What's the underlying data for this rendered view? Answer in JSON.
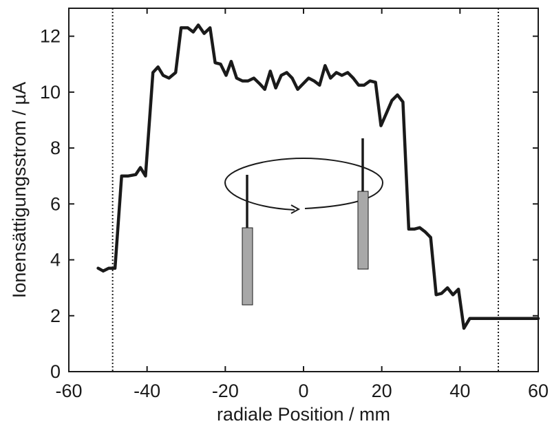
{
  "chart_data": {
    "type": "line",
    "xlabel": "radiale Position  / mm",
    "ylabel": "Ionensättigungsstrom  / µA",
    "xlim": [
      -60,
      60
    ],
    "ylim": [
      0,
      13
    ],
    "x_ticks": [
      -60,
      -40,
      -20,
      0,
      20,
      40,
      60
    ],
    "y_ticks": [
      0,
      2,
      4,
      6,
      8,
      10,
      12
    ],
    "x_tick_labels": [
      "-60",
      "-40",
      "-20",
      "0",
      "20",
      "40",
      "60"
    ],
    "y_tick_labels": [
      "0",
      "2",
      "4",
      "6",
      "8",
      "10",
      "12"
    ],
    "grid": false,
    "vertical_reference_lines": [
      -48.8,
      49.8
    ],
    "series": [
      {
        "x": [
          -52.5,
          -51.2,
          -49.8,
          -48.2,
          -46.5,
          -44.8,
          -42.9,
          -41.7,
          -40.4,
          -38.5,
          -37.2,
          -35.9,
          -34.4,
          -32.7,
          -31.3,
          -29.6,
          -28.2,
          -26.9,
          -25.4,
          -23.9,
          -22.6,
          -21.2,
          -19.8,
          -18.5,
          -17.1,
          -15.6,
          -14.2,
          -12.7,
          -11.2,
          -9.9,
          -8.5,
          -7.1,
          -5.7,
          -4.3,
          -2.9,
          -1.5,
          -0.1,
          1.3,
          2.7,
          4.1,
          5.5,
          6.9,
          8.4,
          9.8,
          11.3,
          12.7,
          14.1,
          15.5,
          17.0,
          18.4,
          19.8,
          21.2,
          22.6,
          24.0,
          25.4,
          26.9,
          28.3,
          29.7,
          31.1,
          32.5,
          33.9,
          35.3,
          36.8,
          38.2,
          39.6,
          41.0,
          42.5,
          43.9,
          45.3,
          46.7,
          48.1,
          49.5,
          50.9,
          52.3,
          53.8,
          55.2,
          56.6,
          58.0,
          59.4,
          60.8
        ],
        "y": [
          3.7,
          3.6,
          3.7,
          3.7,
          7.0,
          7.0,
          7.05,
          7.3,
          7.0,
          10.7,
          10.9,
          10.6,
          10.5,
          10.7,
          12.3,
          12.3,
          12.15,
          12.4,
          12.1,
          12.3,
          11.05,
          11.0,
          10.6,
          11.1,
          10.5,
          10.4,
          10.4,
          10.5,
          10.3,
          10.1,
          10.75,
          10.15,
          10.6,
          10.7,
          10.5,
          10.1,
          10.3,
          10.5,
          10.4,
          10.25,
          10.95,
          10.5,
          10.7,
          10.6,
          10.7,
          10.5,
          10.25,
          10.25,
          10.4,
          10.35,
          8.8,
          9.25,
          9.7,
          9.9,
          9.65,
          5.1,
          5.1,
          5.15,
          5.0,
          4.8,
          2.75,
          2.8,
          3.0,
          2.75,
          2.95,
          1.55,
          1.9,
          1.9,
          1.9,
          1.9,
          1.9,
          1.9,
          1.9,
          1.9,
          1.9,
          1.9,
          1.9,
          1.9,
          1.9,
          1.9
        ]
      }
    ]
  },
  "colors": {
    "line": "#1a1a1a",
    "probe_fill": "#a8a8a8"
  }
}
